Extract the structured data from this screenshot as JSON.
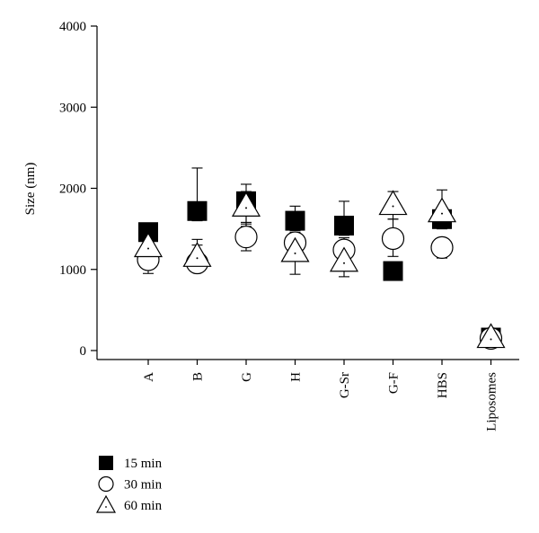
{
  "chart_data": {
    "type": "scatter",
    "ylabel": "Size (nm)",
    "xlabel": "",
    "ylim": [
      0,
      4000
    ],
    "yticks": [
      0,
      1000,
      2000,
      3000,
      4000
    ],
    "categories": [
      "A",
      "B",
      "G",
      "H",
      "G-Sr",
      "G-F",
      "HBS",
      "Liposomes"
    ],
    "series": [
      {
        "name": "15 min",
        "marker": "filled-square",
        "values": [
          1460,
          1720,
          1840,
          1600,
          1540,
          980,
          1620,
          160
        ],
        "err_low": [
          null,
          1600,
          1530,
          1480,
          1420,
          null,
          1500,
          null
        ],
        "err_high": [
          null,
          2250,
          2050,
          1780,
          1840,
          null,
          1760,
          null
        ]
      },
      {
        "name": "30 min",
        "marker": "open-circle",
        "values": [
          1120,
          1080,
          1400,
          1330,
          1240,
          1380,
          1270,
          150
        ],
        "err_low": [
          950,
          980,
          1230,
          1200,
          1100,
          1160,
          1140,
          null
        ],
        "err_high": [
          1250,
          1370,
          1560,
          1460,
          1390,
          1620,
          1380,
          null
        ]
      },
      {
        "name": "60 min",
        "marker": "open-triangle",
        "values": [
          1280,
          1160,
          1780,
          1220,
          1100,
          1800,
          1710,
          160
        ],
        "err_low": [
          1130,
          1020,
          1580,
          940,
          910,
          1620,
          1520,
          null
        ],
        "err_high": [
          1430,
          1300,
          1960,
          1380,
          1250,
          1960,
          1980,
          null
        ]
      }
    ],
    "legend": {
      "placement": "bottom-left"
    }
  }
}
